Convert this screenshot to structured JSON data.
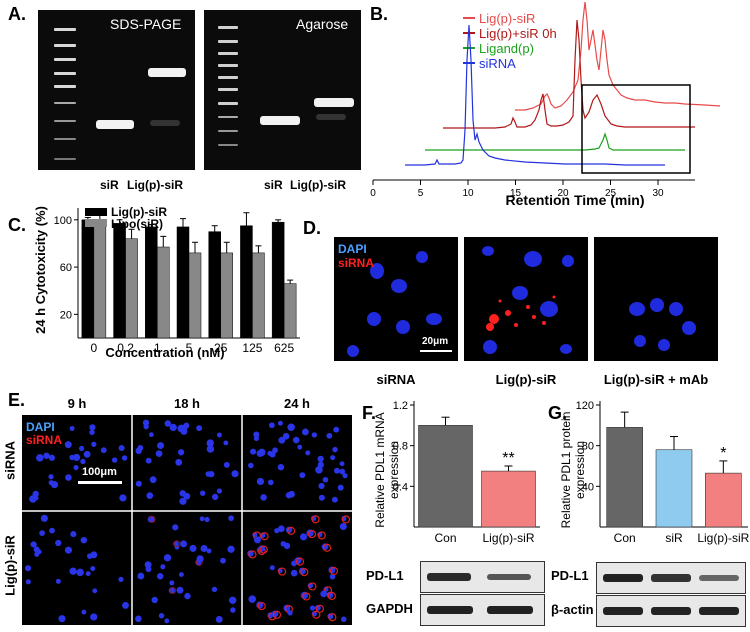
{
  "panels": {
    "A": {
      "label": "A.",
      "gels": [
        {
          "title": "SDS-PAGE",
          "lanes": [
            "siR",
            "Lig(p)-siR"
          ]
        },
        {
          "title": "Agarose",
          "lanes": [
            "siR",
            "Lig(p)-siR"
          ]
        }
      ]
    },
    "B": {
      "label": "B.",
      "chart_data": {
        "type": "line",
        "xlabel": "Retention Time (min)",
        "xlim": [
          0,
          30
        ],
        "xticks": [
          0,
          5,
          10,
          15,
          20,
          25,
          30
        ],
        "series": [
          {
            "name": "Lig(p)-siR",
            "color": "#e84a4a"
          },
          {
            "name": "Lig(p)+siR 0h",
            "color": "#b01818"
          },
          {
            "name": "Ligand(p)",
            "color": "#1aa31a"
          },
          {
            "name": "siRNA",
            "color": "#2233dd"
          }
        ]
      }
    },
    "C": {
      "label": "C.",
      "chart_data": {
        "type": "bar",
        "categories": [
          "0",
          "0.2",
          "1",
          "5",
          "25",
          "125",
          "625"
        ],
        "series": [
          {
            "name": "Lig(p)-siR",
            "color": "#000000",
            "values": [
              100,
              97,
              94,
              94,
              90,
              95,
              98
            ],
            "errors": [
              2,
              3,
              2,
              7,
              5,
              11,
              2
            ]
          },
          {
            "name": "Lipo(siR)",
            "color": "#888888",
            "values": [
              100,
              84,
              77,
              72,
              72,
              72,
              46
            ],
            "errors": [
              6,
              8,
              9,
              9,
              9,
              6,
              3
            ]
          }
        ],
        "xlabel": "Concentration (nM)",
        "ylabel": "24 h Cytotoxicity (%)",
        "ylim": [
          0,
          110
        ],
        "yticks": [
          20,
          60,
          100
        ]
      }
    },
    "D": {
      "label": "D.",
      "legend": {
        "dapi": "DAPI",
        "sirna": "siRNA"
      },
      "scale": "20μm",
      "captions": [
        "siRNA",
        "Lig(p)-siR",
        "Lig(p)-siR + mAb"
      ]
    },
    "E": {
      "label": "E.",
      "timepoints": [
        "9 h",
        "18 h",
        "24 h"
      ],
      "rows": [
        "siRNA",
        "Lig(p)-siR"
      ],
      "legend": {
        "dapi": "DAPI",
        "sirna": "siRNA"
      },
      "scale": "100μm"
    },
    "F": {
      "label": "F.",
      "chart_data": {
        "type": "bar",
        "categories": [
          "Con",
          "Lig(p)-siR"
        ],
        "values": [
          1.0,
          0.55
        ],
        "errors": [
          0.08,
          0.05
        ],
        "colors": [
          "#666666",
          "#f28080"
        ],
        "ylabel": "Relative PDL1 mRNA expression",
        "ylim": [
          0,
          1.2
        ],
        "yticks": [
          0.4,
          0.8,
          1.2
        ],
        "annotations": [
          {
            "category": "Lig(p)-siR",
            "text": "**"
          }
        ]
      },
      "blots": [
        "PD-L1",
        "GAPDH"
      ]
    },
    "G": {
      "label": "G.",
      "chart_data": {
        "type": "bar",
        "categories": [
          "Con",
          "siR",
          "Lig(p)-siR"
        ],
        "values": [
          98,
          76,
          53
        ],
        "errors": [
          15,
          13,
          12
        ],
        "colors": [
          "#666666",
          "#8ecbef",
          "#f28080"
        ],
        "ylabel": "Relative PDL1 protein expression",
        "ylim": [
          0,
          120
        ],
        "yticks": [
          40,
          80,
          120
        ],
        "annotations": [
          {
            "category": "Lig(p)-siR",
            "text": "*"
          }
        ]
      },
      "blots": [
        "PD-L1",
        "β-actin"
      ]
    }
  }
}
